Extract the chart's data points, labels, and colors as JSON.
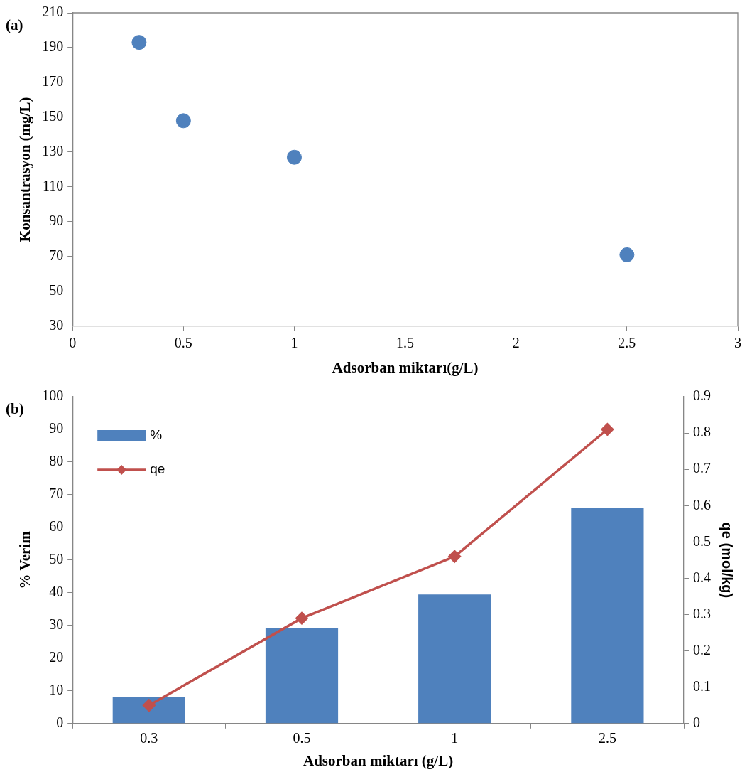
{
  "chart_data": [
    {
      "type": "scatter",
      "annotations": [
        "(a)"
      ],
      "xlabel": "Adsorban miktarı(g/L)",
      "ylabel": "Konsantrasyon (mg/L)",
      "x": [
        0.3,
        0.5,
        1,
        2.5
      ],
      "series": [
        {
          "color": "#4f81bd",
          "values": [
            193,
            148,
            127,
            71
          ]
        }
      ],
      "xlim": [
        0,
        3
      ],
      "xticks": [
        0,
        0.5,
        1,
        1.5,
        2,
        2.5,
        3
      ],
      "ylim": [
        30,
        210
      ],
      "yticks": [
        30,
        50,
        70,
        90,
        110,
        130,
        150,
        170,
        190,
        210
      ],
      "grid": false,
      "legend": false,
      "marker": "circle"
    },
    {
      "type": "bar",
      "annotations": [
        "(b)"
      ],
      "xlabel": "Adsorban miktarı (g/L)",
      "ylabel": "% Verim",
      "y2label": "qe (mol/kg)",
      "categories": [
        "0.3",
        "0.5",
        "1",
        "2.5"
      ],
      "series": [
        {
          "name": "%",
          "type": "bar",
          "color": "#4f81bd",
          "values": [
            8,
            29.2,
            39.5,
            66
          ]
        },
        {
          "name": "qe",
          "type": "line",
          "axis": "y2",
          "color": "#c0504d",
          "values": [
            0.05,
            0.29,
            0.46,
            0.81
          ],
          "marker": "diamond",
          "line_style": "solid"
        }
      ],
      "ylim": [
        0,
        100
      ],
      "yticks": [
        0,
        10,
        20,
        30,
        40,
        50,
        60,
        70,
        80,
        90,
        100
      ],
      "y2lim": [
        0,
        0.9
      ],
      "y2ticks": [
        0,
        0.1,
        0.2,
        0.3,
        0.4,
        0.5,
        0.6,
        0.7,
        0.8,
        0.9
      ],
      "grid": false,
      "legend": "top left"
    }
  ]
}
